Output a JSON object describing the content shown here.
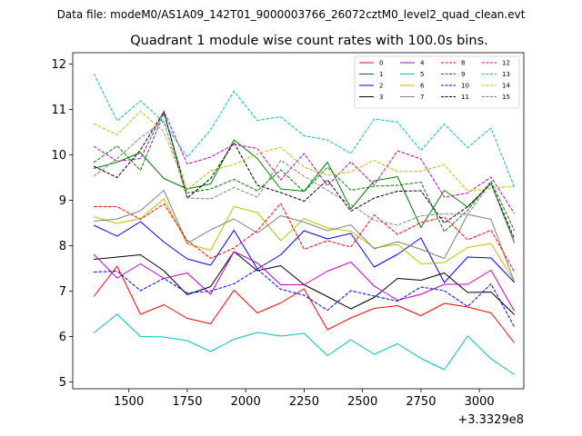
{
  "suptitle": "Data file: modeM0/AS1A09_142T01_9000003766_26072cztM0_level2_quad_clean.evt",
  "chart_data": {
    "type": "line",
    "title": "Quadrant 1 module wise count rates with 100.0s bins.",
    "xlabel": "",
    "ylabel": "",
    "x_offset_label": "+3.3329e8",
    "xlim": [
      1260,
      3190
    ],
    "ylim": [
      4.85,
      12.25
    ],
    "xticks": [
      1500,
      1750,
      2000,
      2250,
      2500,
      2750,
      3000
    ],
    "yticks": [
      5,
      6,
      7,
      8,
      9,
      10,
      11,
      12
    ],
    "grid": false,
    "legend_position": "top-right",
    "x": [
      1350,
      1450,
      1550,
      1650,
      1750,
      1850,
      1950,
      2050,
      2150,
      2250,
      2350,
      2450,
      2550,
      2650,
      2750,
      2850,
      2950,
      3050,
      3150
    ],
    "series": [
      {
        "name": "0",
        "color": "#ff0000",
        "dash": false,
        "values": [
          6.88,
          7.55,
          6.49,
          6.7,
          6.4,
          6.28,
          7.02,
          6.52,
          6.74,
          7.05,
          6.15,
          6.41,
          6.62,
          6.68,
          6.46,
          6.73,
          6.65,
          6.52,
          5.86
        ]
      },
      {
        "name": "1",
        "color": "#008000",
        "dash": false,
        "values": [
          9.7,
          9.84,
          10.05,
          9.48,
          9.25,
          9.36,
          10.33,
          9.92,
          9.25,
          9.2,
          9.84,
          8.81,
          9.43,
          9.52,
          8.4,
          9.22,
          8.85,
          9.37,
          8.06
        ]
      },
      {
        "name": "2",
        "color": "#0000ff",
        "dash": false,
        "values": [
          8.45,
          8.21,
          8.53,
          8.08,
          7.71,
          7.57,
          8.34,
          7.49,
          7.8,
          8.33,
          8.15,
          8.27,
          7.53,
          7.81,
          8.17,
          7.19,
          7.75,
          7.73,
          7.19
        ]
      },
      {
        "name": "3",
        "color": "#000000",
        "dash": false,
        "values": [
          7.7,
          7.75,
          7.8,
          7.45,
          6.92,
          7.1,
          7.87,
          7.45,
          7.56,
          7.14,
          6.88,
          6.61,
          6.86,
          7.28,
          7.24,
          7.4,
          6.97,
          6.98,
          6.48
        ]
      },
      {
        "name": "4",
        "color": "#c000c0",
        "dash": false,
        "values": [
          7.81,
          7.29,
          7.6,
          7.28,
          7.4,
          6.93,
          7.87,
          7.62,
          7.14,
          7.14,
          7.44,
          7.64,
          7.11,
          6.8,
          6.93,
          7.15,
          7.15,
          7.46,
          6.56
        ]
      },
      {
        "name": "5",
        "color": "#00bfbf",
        "dash": false,
        "values": [
          6.08,
          6.49,
          6.0,
          5.99,
          5.91,
          5.67,
          5.94,
          6.09,
          6.01,
          6.07,
          5.58,
          5.93,
          5.61,
          5.84,
          5.52,
          5.27,
          6.01,
          5.51,
          5.16
        ]
      },
      {
        "name": "6",
        "color": "#bfbf00",
        "dash": false,
        "values": [
          8.64,
          8.49,
          8.6,
          9.03,
          8.04,
          7.9,
          8.86,
          8.73,
          8.11,
          8.6,
          8.39,
          8.32,
          7.95,
          8.03,
          7.6,
          7.63,
          7.96,
          8.05,
          7.21
        ]
      },
      {
        "name": "7",
        "color": "#808080",
        "dash": false,
        "values": [
          8.54,
          8.59,
          8.77,
          9.22,
          8.05,
          8.35,
          8.59,
          8.28,
          8.66,
          8.52,
          8.33,
          8.46,
          7.93,
          8.09,
          7.92,
          7.72,
          8.69,
          8.58,
          7.2
        ]
      },
      {
        "name": "8",
        "color": "#ff0000",
        "dash": true,
        "values": [
          8.86,
          8.86,
          8.58,
          8.92,
          8.12,
          7.72,
          7.95,
          8.33,
          8.93,
          7.92,
          8.11,
          7.97,
          8.68,
          8.25,
          8.51,
          8.63,
          8.13,
          8.34,
          7.42
        ]
      },
      {
        "name": "9",
        "color": "#008000",
        "dash": true,
        "values": [
          9.83,
          10.2,
          9.66,
          10.92,
          9.16,
          9.25,
          9.46,
          9.21,
          9.67,
          9.19,
          9.73,
          9.22,
          9.31,
          9.33,
          9.4,
          8.31,
          8.78,
          9.42,
          8.33
        ]
      },
      {
        "name": "10",
        "color": "#0000ff",
        "dash": true,
        "values": [
          7.42,
          7.44,
          7.01,
          7.28,
          6.96,
          7.0,
          7.16,
          7.48,
          7.04,
          6.91,
          6.58,
          7.01,
          6.89,
          6.78,
          7.09,
          7.01,
          6.66,
          7.16,
          6.21
        ]
      },
      {
        "name": "11",
        "color": "#000000",
        "dash": true,
        "values": [
          9.75,
          9.5,
          10.11,
          10.95,
          9.05,
          9.48,
          10.27,
          9.33,
          9.17,
          8.98,
          9.45,
          8.76,
          9.05,
          9.2,
          9.21,
          8.5,
          8.86,
          9.37,
          8.15
        ]
      },
      {
        "name": "12",
        "color": "#c000c0",
        "dash": true,
        "values": [
          10.19,
          9.86,
          9.92,
          10.96,
          9.8,
          9.95,
          10.23,
          10.14,
          9.45,
          10.03,
          9.32,
          9.85,
          9.34,
          10.09,
          9.91,
          9.07,
          9.16,
          9.51,
          8.71
        ]
      },
      {
        "name": "13",
        "color": "#00bfbf",
        "dash": true,
        "values": [
          11.79,
          10.75,
          11.19,
          10.72,
          9.95,
          10.55,
          11.4,
          10.76,
          10.84,
          10.42,
          10.33,
          10.03,
          10.79,
          10.72,
          10.1,
          10.68,
          10.16,
          10.59,
          9.29
        ]
      },
      {
        "name": "14",
        "color": "#bfbf00",
        "dash": true,
        "values": [
          10.69,
          10.44,
          10.96,
          10.51,
          9.23,
          9.65,
          9.79,
          10.02,
          10.17,
          9.73,
          9.55,
          9.63,
          9.88,
          9.63,
          9.64,
          9.78,
          9.2,
          9.26,
          9.31
        ]
      },
      {
        "name": "15",
        "color": "#808080",
        "dash": true,
        "values": [
          9.53,
          9.92,
          10.38,
          10.74,
          9.05,
          9.03,
          9.28,
          9.07,
          9.88,
          9.53,
          9.22,
          8.91,
          8.56,
          8.45,
          8.66,
          8.7,
          8.69,
          9.39,
          8.08
        ]
      }
    ]
  }
}
